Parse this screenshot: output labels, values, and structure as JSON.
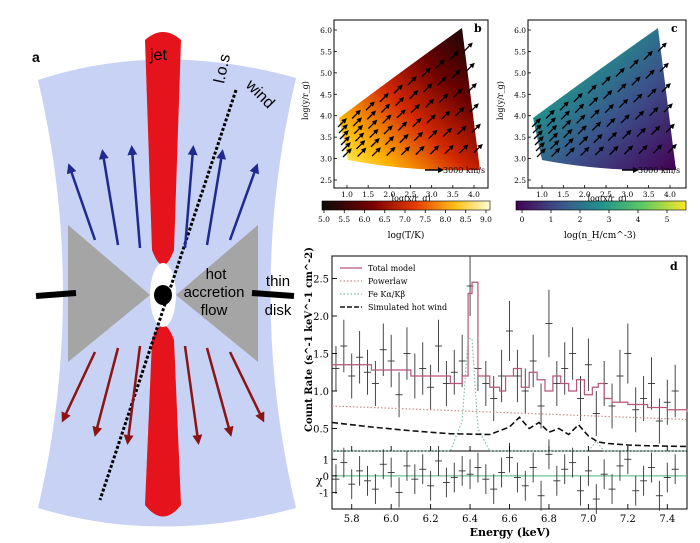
{
  "panel_a": {
    "letter": "a",
    "jet": "jet",
    "los": "l.o.s",
    "wind": "wind",
    "hot_flow": [
      "hot",
      "accretion",
      "flow"
    ],
    "thin_disk": [
      "thin",
      "disk"
    ],
    "colors": {
      "wind": "#c7d2f5",
      "jet": "#e5141c",
      "flow": "#a5a5a5",
      "up_arrows": "#1f2a8c",
      "down_arrows": "#8b1414"
    }
  },
  "panel_b": {
    "letter": "b",
    "y_label": "log(y/r_g)",
    "x_label": "log(x/r_g)",
    "y_ticks": [
      "2.5",
      "3.0",
      "3.5",
      "4.0",
      "4.5",
      "5.0",
      "5.5",
      "6.0"
    ],
    "x_ticks": [
      "1.0",
      "1.5",
      "2.0",
      "2.5",
      "3.0",
      "3.5",
      "4.0"
    ],
    "speed_label": "3000 km/s",
    "colorbar_ticks": [
      "5.0",
      "5.5",
      "6.0",
      "6.5",
      "7.0",
      "7.5",
      "8.0",
      "8.5",
      "9.0"
    ],
    "colorbar_label": "log(T/K)",
    "colormap": "hot"
  },
  "panel_c": {
    "letter": "c",
    "y_label": "log(y/r_g)",
    "x_label": "log(x/r_g)",
    "y_ticks": [
      "2.5",
      "3.0",
      "3.5",
      "4.0",
      "4.5",
      "5.0",
      "5.5",
      "6.0"
    ],
    "x_ticks": [
      "1.0",
      "1.5",
      "2.0",
      "2.5",
      "3.0",
      "3.5",
      "4.0"
    ],
    "speed_label": "3000 km/s",
    "colorbar_ticks": [
      "0",
      "1",
      "2",
      "3",
      "4",
      "5"
    ],
    "colorbar_label": "log(n_H/cm^-3)",
    "colormap": "viridis"
  },
  "panel_d": {
    "letter": "d",
    "y_label": "Count Rate (s^-1 keV^-1 cm^-2)",
    "resid_label": "χ",
    "x_label": "Energy (keV)",
    "legend": [
      {
        "label": "Total model",
        "color": "#b5567a",
        "style": "solid"
      },
      {
        "label": "Powerlaw",
        "color": "#c98a8a",
        "style": "dotted"
      },
      {
        "label": "Fe Kα/Kβ",
        "color": "#7fbf9f",
        "style": "dotted"
      },
      {
        "label": "Simulated hot wind",
        "color": "#111111",
        "style": "dashed"
      }
    ]
  },
  "chart_data": {
    "type": "line",
    "title": "",
    "xlabel": "Energy (keV)",
    "ylabel": "Count Rate (s^-1 keV^-1 cm^-2)",
    "xlim": [
      5.7,
      7.5
    ],
    "ylim": [
      0.2,
      2.8
    ],
    "x_ticks": [
      5.8,
      6.0,
      6.2,
      6.4,
      6.6,
      6.8,
      7.0,
      7.2,
      7.4
    ],
    "y_ticks": [
      0.5,
      1.0,
      1.5,
      2.0,
      2.5
    ],
    "resid_ylim": [
      -2,
      1.5
    ],
    "resid_ticks": [
      -1,
      0,
      1
    ],
    "grid": false,
    "legend_position": "top-left",
    "series": [
      {
        "name": "Total model",
        "x": [
          5.7,
          5.9,
          6.1,
          6.3,
          6.36,
          6.39,
          6.41,
          6.44,
          6.5,
          6.55,
          6.58,
          6.62,
          6.66,
          6.7,
          6.74,
          6.78,
          6.82,
          6.86,
          6.9,
          6.94,
          6.98,
          7.02,
          7.05,
          7.08,
          7.12,
          7.2,
          7.3,
          7.4,
          7.5
        ],
        "y": [
          1.35,
          1.28,
          1.2,
          1.1,
          1.2,
          2.3,
          2.45,
          1.2,
          1.05,
          1.0,
          1.2,
          1.3,
          1.05,
          1.25,
          1.15,
          1.0,
          1.2,
          1.1,
          1.0,
          1.15,
          0.95,
          1.05,
          1.1,
          0.9,
          0.85,
          0.82,
          0.78,
          0.75,
          0.72
        ]
      },
      {
        "name": "Powerlaw",
        "x": [
          5.7,
          7.5
        ],
        "y": [
          0.8,
          0.62
        ]
      },
      {
        "name": "Fe Kα/Kβ",
        "x": [
          5.7,
          6.3,
          6.36,
          6.39,
          6.41,
          6.44,
          6.5,
          7.0,
          7.04,
          7.08,
          7.5
        ],
        "y": [
          0.2,
          0.2,
          0.6,
          1.7,
          1.7,
          0.5,
          0.2,
          0.2,
          0.33,
          0.2,
          0.2
        ]
      },
      {
        "name": "Simulated hot wind",
        "x": [
          5.7,
          5.9,
          6.1,
          6.3,
          6.5,
          6.6,
          6.65,
          6.7,
          6.75,
          6.8,
          6.85,
          6.9,
          6.95,
          7.0,
          7.05,
          7.1,
          7.2,
          7.3,
          7.5
        ],
        "y": [
          0.58,
          0.52,
          0.47,
          0.43,
          0.42,
          0.52,
          0.65,
          0.5,
          0.58,
          0.45,
          0.5,
          0.42,
          0.55,
          0.4,
          0.32,
          0.3,
          0.28,
          0.27,
          0.26
        ]
      }
    ],
    "data_points": {
      "x": [
        5.72,
        5.76,
        5.8,
        5.84,
        5.88,
        5.92,
        5.96,
        6.0,
        6.04,
        6.08,
        6.12,
        6.16,
        6.2,
        6.24,
        6.28,
        6.32,
        6.36,
        6.4,
        6.44,
        6.48,
        6.52,
        6.56,
        6.6,
        6.64,
        6.68,
        6.72,
        6.76,
        6.8,
        6.84,
        6.88,
        6.92,
        6.96,
        7.0,
        7.04,
        7.08,
        7.12,
        7.16,
        7.2,
        7.24,
        7.28,
        7.32,
        7.36,
        7.4,
        7.44
      ],
      "y": [
        1.3,
        1.6,
        1.2,
        1.45,
        1.25,
        1.1,
        1.55,
        1.4,
        0.95,
        1.5,
        1.2,
        1.3,
        1.05,
        1.6,
        1.1,
        1.25,
        1.4,
        2.4,
        1.3,
        1.1,
        0.9,
        1.2,
        1.8,
        1.2,
        1.0,
        1.4,
        0.8,
        1.9,
        1.1,
        1.3,
        1.5,
        0.9,
        1.35,
        0.7,
        1.1,
        0.8,
        1.2,
        1.5,
        0.75,
        0.9,
        1.1,
        0.6,
        0.85,
        1.0
      ],
      "err": [
        0.3,
        0.35,
        0.3,
        0.35,
        0.3,
        0.3,
        0.35,
        0.35,
        0.3,
        0.35,
        0.3,
        0.35,
        0.3,
        0.35,
        0.3,
        0.3,
        0.35,
        0.4,
        0.3,
        0.3,
        0.3,
        0.35,
        0.4,
        0.35,
        0.3,
        0.35,
        0.3,
        0.45,
        0.3,
        0.35,
        0.35,
        0.3,
        0.35,
        0.3,
        0.3,
        0.3,
        0.35,
        0.4,
        0.3,
        0.3,
        0.35,
        0.3,
        0.3,
        0.35
      ]
    },
    "residuals": {
      "x": [
        5.72,
        5.76,
        5.8,
        5.84,
        5.88,
        5.92,
        5.96,
        6.0,
        6.04,
        6.08,
        6.12,
        6.16,
        6.2,
        6.24,
        6.28,
        6.32,
        6.36,
        6.4,
        6.44,
        6.48,
        6.52,
        6.56,
        6.6,
        6.64,
        6.68,
        6.72,
        6.76,
        6.8,
        6.84,
        6.88,
        6.92,
        6.96,
        7.0,
        7.04,
        7.08,
        7.12,
        7.16,
        7.2,
        7.24,
        7.28,
        7.32,
        7.36,
        7.4,
        7.44
      ],
      "y": [
        -0.2,
        0.8,
        -0.5,
        0.3,
        -0.3,
        -0.8,
        0.7,
        0.2,
        -1.0,
        0.6,
        -0.2,
        0.4,
        -0.6,
        0.9,
        -0.4,
        -0.1,
        0.3,
        0.1,
        0.5,
        -0.2,
        -0.8,
        0.2,
        1.1,
        -0.1,
        -0.6,
        0.5,
        -1.2,
        1.3,
        -0.3,
        0.4,
        0.8,
        -0.9,
        0.3,
        -1.4,
        0.1,
        -0.8,
        0.6,
        1.0,
        -0.9,
        -0.3,
        0.5,
        -1.2,
        -0.1,
        0.4
      ]
    }
  }
}
